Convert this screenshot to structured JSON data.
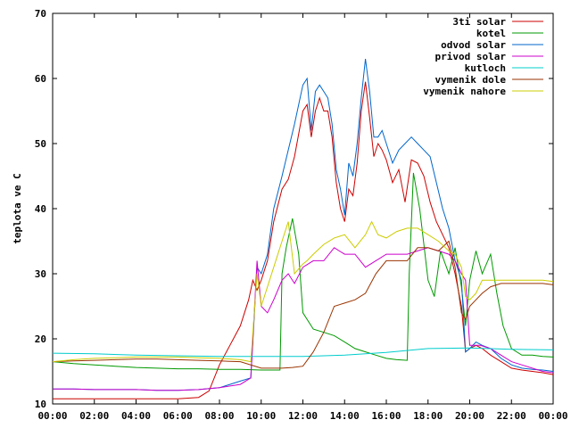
{
  "chart_data": {
    "type": "line",
    "ylabel": "teplota ve C",
    "xlabel": "",
    "title": "",
    "ylim": [
      10,
      70
    ],
    "xlim": [
      0,
      24
    ],
    "x_ticks": [
      0,
      2,
      4,
      6,
      8,
      10,
      12,
      14,
      16,
      18,
      20,
      22,
      24
    ],
    "x_tick_labels": [
      "00:00",
      "02:00",
      "04:00",
      "06:00",
      "08:00",
      "10:00",
      "12:00",
      "14:00",
      "16:00",
      "18:00",
      "20:00",
      "22:00",
      "00:00"
    ],
    "y_ticks": [
      10,
      20,
      30,
      40,
      50,
      60,
      70
    ],
    "y_tick_labels": [
      "10",
      "20",
      "30",
      "40",
      "50",
      "60",
      "70"
    ],
    "grid": false,
    "legend_position": "top-right",
    "series": [
      {
        "name": "3ti solar",
        "color": "#cc0000",
        "x": [
          0,
          1,
          2,
          3,
          4,
          5,
          6,
          7,
          7.5,
          8,
          8.5,
          9,
          9.4,
          9.6,
          9.8,
          10,
          10.3,
          10.6,
          11,
          11.3,
          11.6,
          12,
          12.2,
          12.4,
          12.6,
          12.8,
          13,
          13.2,
          13.4,
          13.6,
          13.8,
          14,
          14.2,
          14.4,
          14.6,
          14.8,
          15,
          15.2,
          15.4,
          15.6,
          15.8,
          16,
          16.3,
          16.6,
          16.9,
          17.2,
          17.5,
          17.8,
          18.1,
          18.4,
          18.7,
          19,
          19.3,
          19.6,
          19.8,
          20,
          20.3,
          20.6,
          21,
          21.5,
          22,
          22.5,
          23,
          23.5,
          24
        ],
        "y": [
          10.8,
          10.8,
          10.8,
          10.8,
          10.8,
          10.8,
          10.8,
          11,
          12,
          16,
          19,
          22,
          26,
          29,
          27.5,
          29,
          32,
          38,
          43,
          44.5,
          48,
          55,
          56,
          51,
          55,
          57,
          55,
          55,
          51,
          44,
          40,
          38,
          43,
          42,
          47,
          55,
          59.5,
          54,
          48,
          50,
          49,
          47.5,
          44,
          46,
          41,
          47.5,
          47,
          45,
          41,
          38,
          36,
          34,
          30,
          25,
          18,
          18.5,
          19,
          18.5,
          17.5,
          16.5,
          15.5,
          15.2,
          15,
          14.8,
          14.5
        ]
      },
      {
        "name": "kotel",
        "color": "#009900",
        "x": [
          0,
          1,
          2,
          3,
          4,
          5,
          6,
          7,
          8,
          9,
          10,
          10.5,
          10.9,
          11,
          11.2,
          11.5,
          11.8,
          12,
          12.5,
          13,
          13.5,
          14,
          14.5,
          15,
          15.5,
          16,
          16.5,
          17,
          17.1,
          17.3,
          17.6,
          18,
          18.3,
          18.6,
          19,
          19.3,
          19.6,
          19.8,
          20,
          20.3,
          20.6,
          21,
          21.3,
          21.6,
          22,
          22.5,
          23,
          23.5,
          24
        ],
        "y": [
          16.5,
          16.2,
          16,
          15.8,
          15.6,
          15.5,
          15.4,
          15.4,
          15.3,
          15.3,
          15.2,
          15.2,
          15.2,
          30,
          34,
          38.5,
          33,
          24,
          21.5,
          21,
          20.5,
          19.5,
          18.5,
          18,
          17.5,
          17,
          16.8,
          16.7,
          30,
          45.5,
          40,
          29,
          26.5,
          33.5,
          30,
          34,
          28,
          22,
          29,
          33.5,
          30,
          33,
          27,
          22,
          18.5,
          17.5,
          17.5,
          17.3,
          17.2
        ]
      },
      {
        "name": "odvod solar",
        "color": "#0066cc",
        "x": [
          0,
          1,
          2,
          3,
          4,
          5,
          6,
          7,
          8,
          8.5,
          9,
          9.5,
          9.8,
          10,
          10.3,
          10.6,
          11,
          11.3,
          11.6,
          12,
          12.2,
          12.4,
          12.6,
          12.8,
          13,
          13.2,
          13.4,
          13.6,
          13.8,
          14,
          14.2,
          14.4,
          14.6,
          14.8,
          15,
          15.2,
          15.4,
          15.6,
          15.8,
          16,
          16.3,
          16.6,
          16.9,
          17.2,
          17.5,
          17.8,
          18.1,
          18.4,
          18.7,
          19,
          19.3,
          19.6,
          19.8,
          20,
          20.3,
          20.6,
          21,
          21.5,
          22,
          22.5,
          23,
          23.5,
          24
        ],
        "y": [
          12.3,
          12.3,
          12.2,
          12.2,
          12.2,
          12.1,
          12.1,
          12.2,
          12.5,
          13,
          13.5,
          14,
          31,
          30,
          33,
          40,
          45,
          49,
          53,
          59,
          60,
          52,
          58,
          59,
          58,
          57,
          53,
          46,
          43,
          39,
          47,
          45,
          50,
          57,
          63,
          58,
          51,
          51,
          52,
          50,
          47,
          49,
          50,
          51,
          50,
          49,
          48,
          44,
          40,
          37,
          32,
          29,
          18,
          18.5,
          19.5,
          19,
          18.5,
          17,
          16,
          15.5,
          15.3,
          15.2,
          15
        ]
      },
      {
        "name": "privod solar",
        "color": "#cc00cc",
        "x": [
          0,
          1,
          2,
          3,
          4,
          5,
          6,
          7,
          8,
          9,
          9.5,
          9.8,
          10,
          10.3,
          10.6,
          11,
          11.3,
          11.6,
          12,
          12.5,
          13,
          13.5,
          14,
          14.5,
          15,
          15.5,
          16,
          16.5,
          17,
          17.5,
          18,
          18.5,
          19,
          19.3,
          19.6,
          19.8,
          20,
          20.5,
          21,
          21.5,
          22,
          22.5,
          23,
          23.5,
          24
        ],
        "y": [
          12.3,
          12.3,
          12.2,
          12.2,
          12.2,
          12.1,
          12.1,
          12.2,
          12.5,
          13,
          14,
          32,
          25,
          24,
          26,
          29,
          30,
          28.5,
          31,
          32,
          32,
          34,
          33,
          33,
          31,
          32,
          33,
          33,
          33,
          33.5,
          34,
          33.5,
          33,
          32,
          30,
          29,
          19,
          19,
          18.5,
          17.5,
          16.5,
          16,
          15.5,
          15,
          14.8
        ]
      },
      {
        "name": "kutloch",
        "color": "#00cccc",
        "x": [
          0,
          2,
          4,
          6,
          8,
          10,
          12,
          14,
          16,
          18,
          20,
          22,
          24
        ],
        "y": [
          17.8,
          17.7,
          17.5,
          17.4,
          17.3,
          17.3,
          17.3,
          17.5,
          17.9,
          18.5,
          18.6,
          18.4,
          18.3
        ]
      },
      {
        "name": "vymenik dole",
        "color": "#993300",
        "x": [
          0,
          1,
          2,
          3,
          4,
          5,
          6,
          7,
          8,
          9,
          10,
          10.5,
          11,
          11.5,
          12,
          12.5,
          13,
          13.5,
          14,
          14.5,
          15,
          15.5,
          16,
          16.5,
          17,
          17.5,
          18,
          18.5,
          19,
          19.3,
          19.6,
          19.8,
          20,
          20.3,
          20.6,
          21,
          21.5,
          22,
          22.5,
          23,
          23.5,
          24
        ],
        "y": [
          16.5,
          16.6,
          16.7,
          16.8,
          16.9,
          16.9,
          16.8,
          16.7,
          16.6,
          16.5,
          15.5,
          15.5,
          15.5,
          15.6,
          15.8,
          18,
          21,
          25,
          25.5,
          26,
          27,
          30,
          32,
          32,
          32,
          34,
          34,
          33.5,
          35,
          31,
          24,
          23,
          25,
          26,
          27,
          28,
          28.5,
          28.5,
          28.5,
          28.5,
          28.5,
          28.3
        ]
      },
      {
        "name": "vymenik nahore",
        "color": "#cccc00",
        "x": [
          0,
          1,
          2,
          3,
          4,
          5,
          6,
          7,
          8,
          9,
          9.5,
          9.8,
          10,
          10.3,
          10.6,
          11,
          11.3,
          11.6,
          12,
          12.2,
          12.5,
          13,
          13.5,
          14,
          14.5,
          15,
          15.3,
          15.6,
          16,
          16.5,
          17,
          17.5,
          18,
          18.5,
          19,
          19.3,
          19.6,
          19.8,
          20,
          20.3,
          20.6,
          21,
          21.5,
          22,
          22.5,
          23,
          23.5,
          24
        ],
        "y": [
          16.5,
          16.8,
          17,
          17.1,
          17.2,
          17.2,
          17.2,
          17.1,
          17,
          16.8,
          16.5,
          30,
          25,
          28,
          31,
          35,
          38,
          30,
          31.5,
          32,
          33,
          34.5,
          35.5,
          36,
          34,
          36,
          38,
          36,
          35.5,
          36.5,
          37,
          37,
          36,
          35,
          33.5,
          33,
          31,
          26.5,
          26,
          27,
          29,
          29,
          29,
          29,
          29,
          29,
          29,
          28.8
        ]
      }
    ]
  }
}
